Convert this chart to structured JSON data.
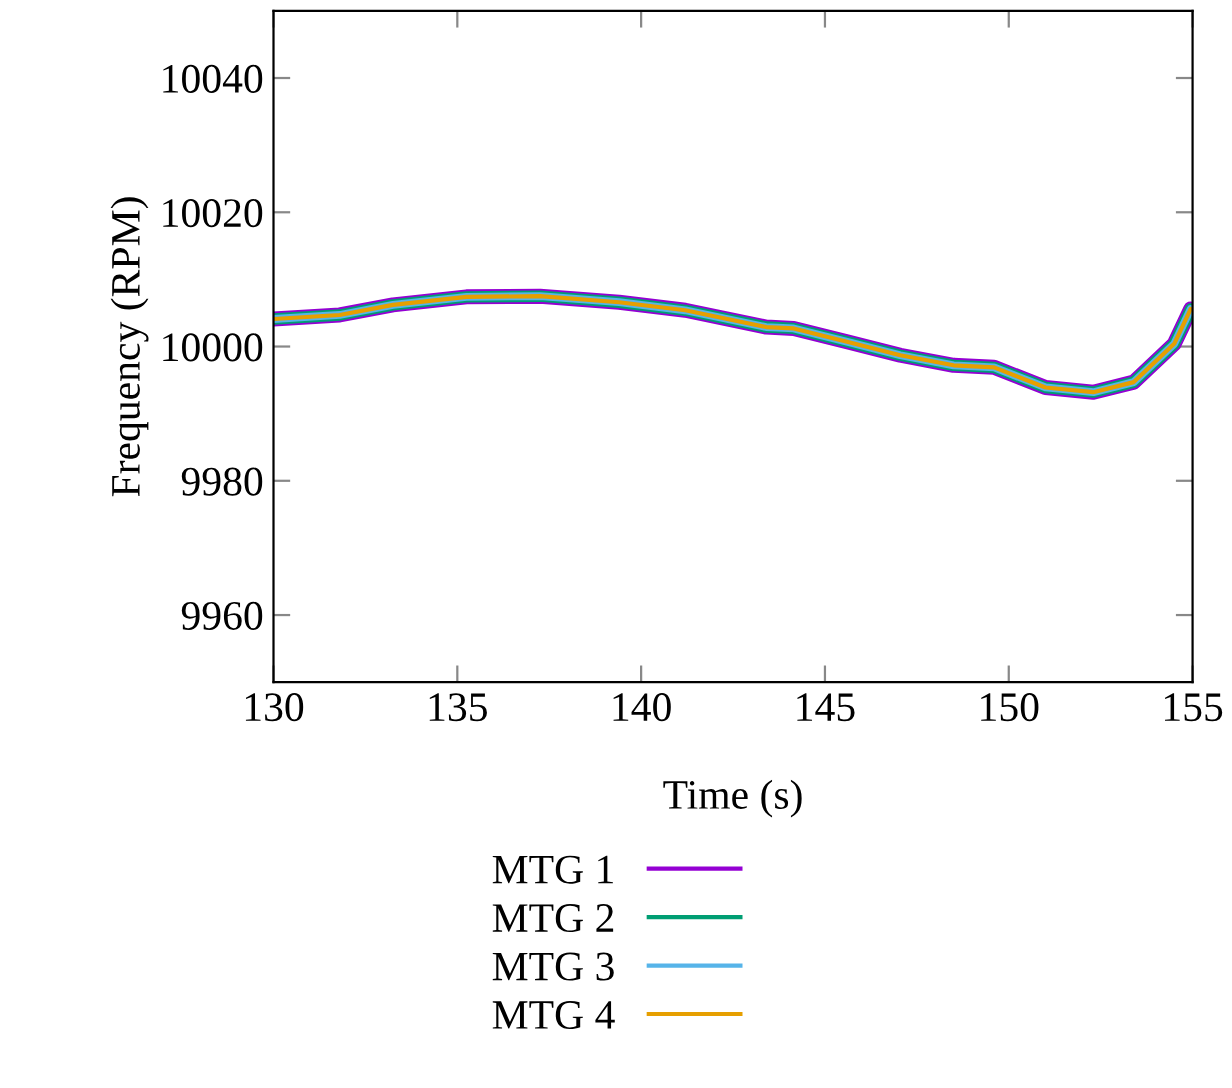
{
  "chart_data": {
    "type": "line",
    "xlabel": "Time (s)",
    "ylabel": "Frequency (RPM)",
    "x": [
      130.0,
      131.8,
      133.25,
      135.25,
      137.25,
      139.4,
      141.2,
      143.4,
      144.15,
      145.6,
      147.05,
      148.5,
      149.6,
      151.0,
      152.3,
      153.4,
      154.5,
      154.95
    ],
    "series": [
      {
        "name": "MTG 1",
        "color": "#9400d3",
        "values": [
          10004.1,
          10004.7,
          10006.2,
          10007.4,
          10007.5,
          10006.6,
          10005.4,
          10002.9,
          10002.7,
          10000.7,
          9998.7,
          9997.2,
          9996.9,
          9993.9,
          9993.2,
          9994.7,
          10000.4,
          10005.6
        ]
      },
      {
        "name": "MTG 2",
        "color": "#009e73",
        "values": [
          10004.1,
          10004.7,
          10006.2,
          10007.4,
          10007.5,
          10006.6,
          10005.4,
          10002.9,
          10002.7,
          10000.7,
          9998.7,
          9997.2,
          9996.9,
          9993.9,
          9993.2,
          9994.7,
          10000.4,
          10005.6
        ]
      },
      {
        "name": "MTG 3",
        "color": "#56b4e9",
        "values": [
          10004.1,
          10004.7,
          10006.2,
          10007.4,
          10007.5,
          10006.6,
          10005.4,
          10002.9,
          10002.7,
          10000.7,
          9998.7,
          9997.2,
          9996.9,
          9993.9,
          9993.2,
          9994.7,
          10000.4,
          10005.6
        ]
      },
      {
        "name": "MTG 4",
        "color": "#e69f00",
        "values": [
          10004.1,
          10004.7,
          10006.2,
          10007.4,
          10007.5,
          10006.6,
          10005.4,
          10002.9,
          10002.7,
          10000.7,
          9998.7,
          9997.2,
          9996.9,
          9993.9,
          9993.2,
          9994.7,
          10000.4,
          10005.6
        ]
      }
    ],
    "xlim": [
      130,
      155
    ],
    "xticks": [
      130,
      135,
      140,
      145,
      150,
      155
    ],
    "ylim": [
      9950,
      10050
    ],
    "yticks": [
      9960,
      9980,
      10000,
      10020,
      10040
    ],
    "grid": false,
    "legend": "bottom",
    "line_style": "solid",
    "marker": "none"
  }
}
